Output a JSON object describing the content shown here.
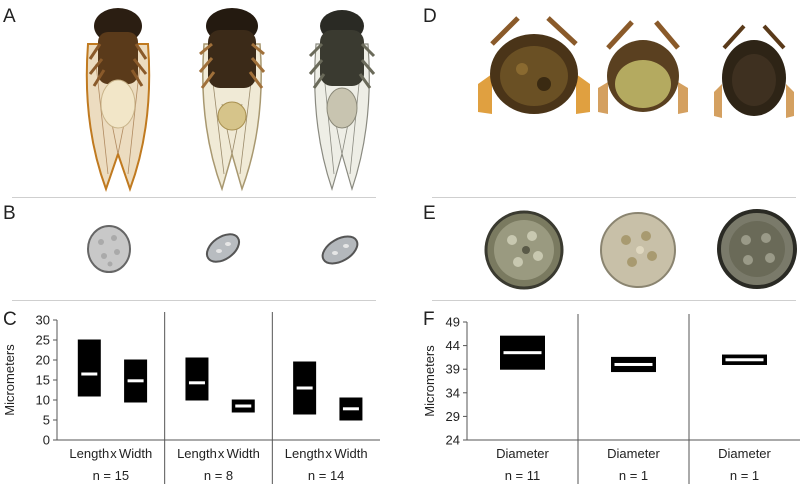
{
  "panels": {
    "A": "A",
    "B": "B",
    "C": "C",
    "D": "D",
    "E": "E",
    "F": "F"
  },
  "colors": {
    "box": "#000000",
    "median": "#ffffff",
    "axis": "#555555",
    "divider": "#cfcfcf",
    "wing": "#e8dcc4",
    "body": "#3a2a1a",
    "plug": "#efe4c8"
  },
  "chart_data": [
    {
      "type": "box",
      "panel": "C",
      "ylabel": "Micrometers",
      "ylim": [
        0,
        30
      ],
      "yticks": [
        0,
        5,
        10,
        15,
        20,
        25,
        30
      ],
      "groups": [
        {
          "n_label": "n = 15",
          "x_labels": [
            "Length",
            "x",
            "Width"
          ],
          "boxes": [
            {
              "name": "Length",
              "low": 11,
              "high": 25,
              "median": 16.5
            },
            {
              "name": "Width",
              "low": 9.5,
              "high": 20,
              "median": 14.8
            }
          ]
        },
        {
          "n_label": "n = 8",
          "x_labels": [
            "Length",
            "x",
            "Width"
          ],
          "boxes": [
            {
              "name": "Length",
              "low": 10,
              "high": 20.5,
              "median": 14.3
            },
            {
              "name": "Width",
              "low": 7,
              "high": 10,
              "median": 8.5
            }
          ]
        },
        {
          "n_label": "n = 14",
          "x_labels": [
            "Length",
            "x",
            "Width"
          ],
          "boxes": [
            {
              "name": "Length",
              "low": 6.5,
              "high": 19.5,
              "median": 13
            },
            {
              "name": "Width",
              "low": 5,
              "high": 10.5,
              "median": 7.8
            }
          ]
        }
      ]
    },
    {
      "type": "box",
      "panel": "F",
      "ylabel": "Micrometers",
      "ylim": [
        24,
        49
      ],
      "yticks": [
        24,
        29,
        34,
        39,
        44,
        49
      ],
      "groups": [
        {
          "n_label": "n = 11",
          "x_labels": [
            "Diameter"
          ],
          "boxes": [
            {
              "name": "Diameter",
              "low": 39,
              "high": 46,
              "median": 42.5
            }
          ]
        },
        {
          "n_label": "n = 1",
          "x_labels": [
            "Diameter"
          ],
          "boxes": [
            {
              "name": "Diameter",
              "low": 38.5,
              "high": 41.5,
              "median": 40
            }
          ]
        },
        {
          "n_label": "n = 1",
          "x_labels": [
            "Diameter"
          ],
          "boxes": [
            {
              "name": "Diameter",
              "low": 40,
              "high": 42,
              "median": 41
            }
          ]
        }
      ]
    }
  ]
}
